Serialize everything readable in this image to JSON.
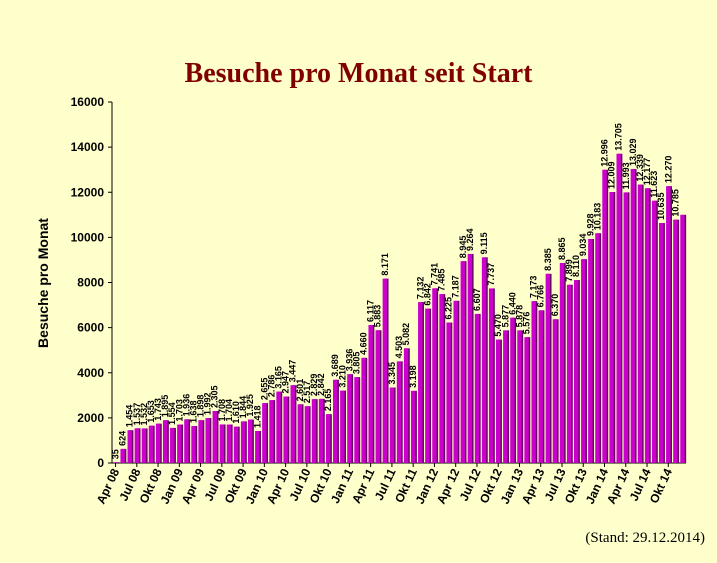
{
  "chart_data": {
    "type": "bar",
    "title": "Besuche pro Monat seit Start",
    "ylabel": "Besuche pro Monat",
    "xlabel": "",
    "ylim": [
      0,
      16000
    ],
    "yticks": [
      0,
      2000,
      4000,
      6000,
      8000,
      10000,
      12000,
      14000,
      16000
    ],
    "grid": false,
    "bar_color": "#cc00cc",
    "bar_shadow_color": "#660066",
    "categories": [
      "Apr 08",
      "Mai 08",
      "Jun 08",
      "Jul 08",
      "Aug 08",
      "Sep 08",
      "Okt 08",
      "Nov 08",
      "Dez 08",
      "Jan 09",
      "Feb 09",
      "Mär 09",
      "Apr 09",
      "Mai 09",
      "Jun 09",
      "Jul 09",
      "Aug 09",
      "Sep 09",
      "Okt 09",
      "Nov 09",
      "Dez 09",
      "Jan 10",
      "Feb 10",
      "Mär 10",
      "Apr 10",
      "Mai 10",
      "Jun 10",
      "Jul 10",
      "Aug 10",
      "Sep 10",
      "Okt 10",
      "Nov 10",
      "Dez 10",
      "Jan 11",
      "Feb 11",
      "Mär 11",
      "Apr 11",
      "Mai 11",
      "Jun 11",
      "Jul 11",
      "Aug 11",
      "Sep 11",
      "Okt 11",
      "Nov 11",
      "Dez 11",
      "Jan 12",
      "Feb 12",
      "Mär 12",
      "Apr 12",
      "Mai 12",
      "Jun 12",
      "Jul 12",
      "Aug 12",
      "Sep 12",
      "Okt 12",
      "Nov 12",
      "Dez 12",
      "Jan 13",
      "Feb 13",
      "Mär 13",
      "Apr 13",
      "Mai 13",
      "Jun 13",
      "Jul 13",
      "Aug 13",
      "Sep 13",
      "Okt 13",
      "Nov 13",
      "Dez 13",
      "Jan 14",
      "Feb 14",
      "Mär 14",
      "Apr 14",
      "Mai 14",
      "Jun 14",
      "Jul 14",
      "Aug 14",
      "Sep 14",
      "Okt 14",
      "Nov 14",
      "Dez 14"
    ],
    "values": [
      35,
      624,
      1454,
      1537,
      1532,
      1653,
      1743,
      1895,
      1554,
      1703,
      1936,
      1638,
      1898,
      1992,
      2305,
      1708,
      1704,
      1610,
      1844,
      1925,
      1418,
      2655,
      2786,
      3165,
      2947,
      3447,
      2601,
      2517,
      2829,
      2842,
      2165,
      3689,
      3210,
      3936,
      3805,
      4660,
      6117,
      5883,
      8171,
      3345,
      4503,
      5082,
      3198,
      7132,
      6842,
      7741,
      7485,
      6225,
      7187,
      8945,
      9264,
      6607,
      9115,
      7737,
      5470,
      5877,
      6440,
      5878,
      5576,
      7173,
      6766,
      8385,
      6370,
      8865,
      7899,
      8110,
      9034,
      9928,
      10183,
      12996,
      12009,
      13705,
      11993,
      13029,
      12339,
      12177,
      11623,
      10635,
      12270,
      10785,
      11000
    ],
    "data_labels": [
      "35",
      "624",
      "1.454",
      "1.537",
      "1.532",
      "1.653",
      "1.743",
      "1.895",
      "1.554",
      "1.703",
      "1.936",
      "1.638",
      "1.898",
      "1.992",
      "2.305",
      "1.708",
      "1.704",
      "1.610",
      "1.844",
      "1.925",
      "1.418",
      "2.655",
      "2.786",
      "3.165",
      "2.947",
      "3.447",
      "2.601",
      "2.517",
      "2.829",
      "2.842",
      "2.165",
      "3.689",
      "3.210",
      "3.936",
      "3.805",
      "4.660",
      "6.117",
      "5.883",
      "8.171",
      "3.345",
      "4.503",
      "5.082",
      "3.198",
      "7.132",
      "6.842",
      "7.741",
      "7.485",
      "6.225",
      "7.187",
      "8.945",
      "9.264",
      "6.607",
      "9.115",
      "7.737",
      "5.470",
      "5.877",
      "6.440",
      "5.878",
      "5.576",
      "7.173",
      "6.766",
      "8.385",
      "6.370",
      "8.865",
      "7.899",
      "8.110",
      "9.034",
      "9.928",
      "10.183",
      "12.996",
      "12.009",
      "13.705",
      "11.993",
      "13.029",
      "12.339",
      "12.177",
      "11.623",
      "10.635",
      "12.270",
      "10.785",
      ""
    ],
    "x_tick_labels": [
      "Apr 08",
      "Jul 08",
      "Okt 08",
      "Jan 09",
      "Apr 09",
      "Jul 09",
      "Okt 09",
      "Jan 10",
      "Apr 10",
      "Jul 10",
      "Okt 10",
      "Jan 11",
      "Apr 11",
      "Jul 11",
      "Okt 11",
      "Jan 12",
      "Apr 12",
      "Jul 12",
      "Okt 12",
      "Jan 13",
      "Apr 13",
      "Jul 13",
      "Okt 13",
      "Jan 14",
      "Apr 14",
      "Jul 14",
      "Okt 14"
    ]
  },
  "footnote": "(Stand: 29.12.2014)"
}
